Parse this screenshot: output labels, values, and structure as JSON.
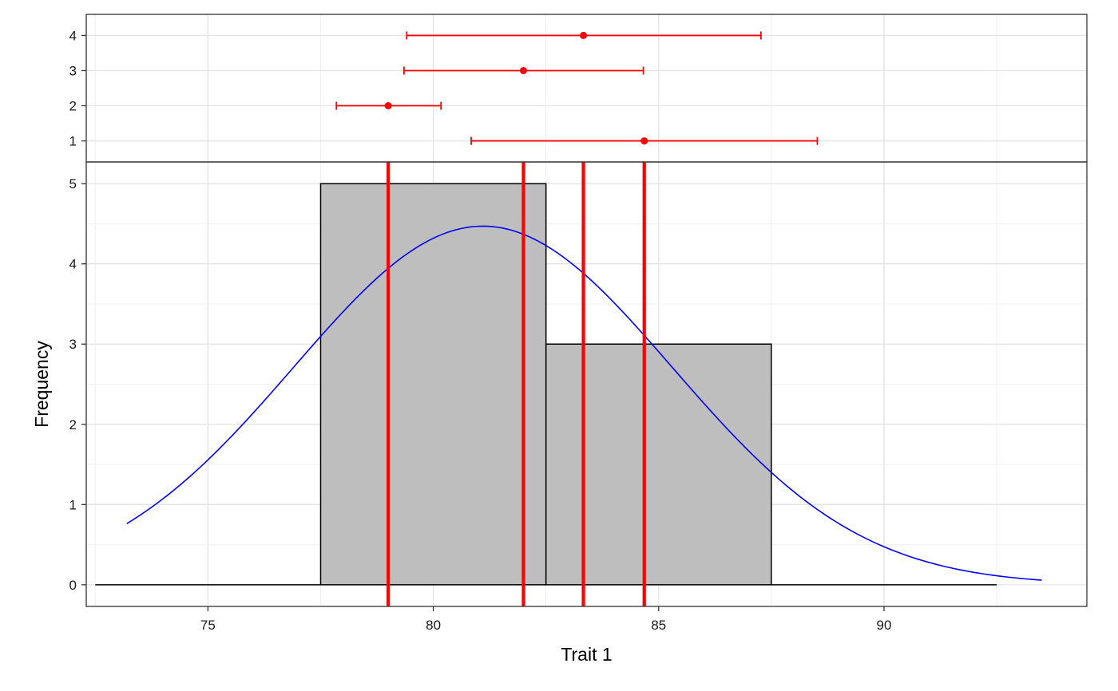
{
  "chart_data": [
    {
      "panel": "top",
      "type": "errorbar",
      "categories": [
        "1",
        "2",
        "3",
        "4"
      ],
      "points": [
        {
          "group": "1",
          "mean": 84.68,
          "lower": 80.84,
          "upper": 88.52
        },
        {
          "group": "2",
          "mean": 79.0,
          "lower": 77.85,
          "upper": 80.17
        },
        {
          "group": "3",
          "mean": 82.0,
          "lower": 79.35,
          "upper": 84.66
        },
        {
          "group": "4",
          "mean": 83.33,
          "lower": 79.41,
          "upper": 87.27
        }
      ],
      "xlim": [
        72.3,
        94.5
      ],
      "color": "#ff0000",
      "grid": true
    },
    {
      "panel": "bottom",
      "type": "bar",
      "xlabel": "Trait 1",
      "ylabel": "Frequency",
      "bins": [
        {
          "start": 72.5,
          "end": 77.5,
          "count": 0
        },
        {
          "start": 77.5,
          "end": 82.5,
          "count": 5
        },
        {
          "start": 82.5,
          "end": 87.5,
          "count": 3
        },
        {
          "start": 87.5,
          "end": 92.5,
          "count": 0
        }
      ],
      "density_curve": {
        "color": "#0000ff",
        "x_range": [
          73.2,
          93.5
        ],
        "peak_x": 81.1,
        "peak_y": 4.47,
        "sd": 4.2
      },
      "vlines": [
        79.0,
        82.0,
        83.33,
        84.68
      ],
      "vline_color": "#ff0000",
      "bar_fill": "#bebebe",
      "xlim": [
        72.3,
        94.5
      ],
      "ylim": [
        -0.27,
        5.27
      ],
      "x_ticks": [
        75,
        80,
        85,
        90
      ],
      "y_ticks": [
        0,
        1,
        2,
        3,
        4,
        5
      ],
      "grid": true
    }
  ]
}
